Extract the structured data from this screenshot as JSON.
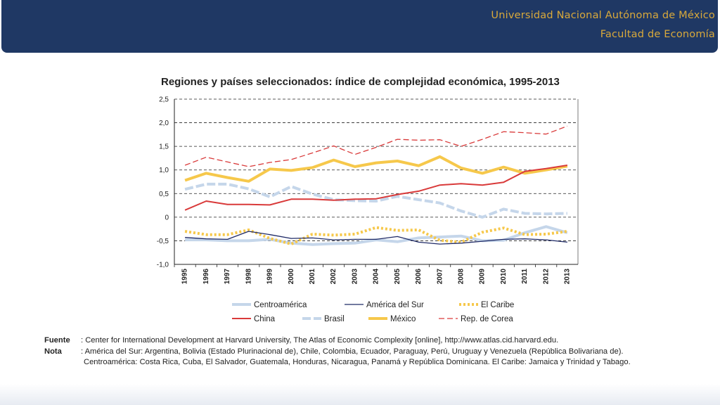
{
  "header": {
    "line1": "Universidad Nacional Autónoma de México",
    "line2": "Facultad de Economía",
    "bg_color": "#1f3864",
    "text_color": "#d9a93b"
  },
  "chart_data": {
    "type": "line",
    "title": "Regiones y países seleccionados: índice de complejidad económica, 1995-2013",
    "xlabel": "",
    "ylabel": "",
    "categories": [
      "1995",
      "1996",
      "1997",
      "1998",
      "1999",
      "2000",
      "2001",
      "2002",
      "2003",
      "2004",
      "2005",
      "2006",
      "2007",
      "2008",
      "2009",
      "2010",
      "2011",
      "2012",
      "2013"
    ],
    "ylim": [
      -1.0,
      2.5
    ],
    "yticks": [
      2.5,
      2.0,
      1.5,
      1.0,
      0.5,
      0,
      -0.5,
      -1.0
    ],
    "ytick_labels": [
      "2,5",
      "2,0",
      "1,5",
      "1,0",
      "0,5",
      "0",
      "-0,5",
      "-1,0"
    ],
    "grid": "horizontal dashed",
    "legend_position": "bottom",
    "series": [
      {
        "name": "Centroamérica",
        "color": "#c5d6ea",
        "style": "thick",
        "values": [
          -0.48,
          -0.48,
          -0.5,
          -0.5,
          -0.47,
          -0.55,
          -0.58,
          -0.56,
          -0.55,
          -0.48,
          -0.52,
          -0.44,
          -0.42,
          -0.4,
          -0.5,
          -0.49,
          -0.33,
          -0.2,
          -0.33
        ]
      },
      {
        "name": "América del Sur",
        "color": "#1f2a66",
        "style": "thin",
        "values": [
          -0.43,
          -0.46,
          -0.47,
          -0.3,
          -0.37,
          -0.45,
          -0.44,
          -0.48,
          -0.47,
          -0.47,
          -0.41,
          -0.53,
          -0.57,
          -0.55,
          -0.51,
          -0.47,
          -0.46,
          -0.48,
          -0.53
        ]
      },
      {
        "name": "El Caribe",
        "color": "#f6c84b",
        "style": "dotted",
        "values": [
          -0.3,
          -0.37,
          -0.37,
          -0.27,
          -0.45,
          -0.57,
          -0.36,
          -0.38,
          -0.36,
          -0.22,
          -0.28,
          -0.27,
          -0.49,
          -0.53,
          -0.32,
          -0.23,
          -0.37,
          -0.36,
          -0.3
        ]
      },
      {
        "name": "China",
        "color": "#d93a3a",
        "style": "solid",
        "values": [
          0.15,
          0.34,
          0.27,
          0.27,
          0.26,
          0.38,
          0.38,
          0.36,
          0.38,
          0.39,
          0.48,
          0.55,
          0.68,
          0.71,
          0.68,
          0.74,
          0.97,
          1.03,
          1.1
        ]
      },
      {
        "name": "Brasil",
        "color": "#c5d6ea",
        "style": "dashed-thick",
        "values": [
          0.59,
          0.7,
          0.7,
          0.6,
          0.43,
          0.65,
          0.49,
          0.37,
          0.35,
          0.34,
          0.44,
          0.37,
          0.3,
          0.13,
          0.0,
          0.17,
          0.08,
          0.07,
          0.08
        ]
      },
      {
        "name": "México",
        "color": "#f6c84b",
        "style": "thick",
        "values": [
          0.78,
          0.93,
          0.84,
          0.76,
          1.02,
          0.99,
          1.05,
          1.21,
          1.07,
          1.15,
          1.19,
          1.09,
          1.28,
          1.04,
          0.93,
          1.06,
          0.93,
          1.0,
          1.08
        ]
      },
      {
        "name": "Rep. de Corea",
        "color": "#d93a3a",
        "style": "dashed",
        "values": [
          1.1,
          1.27,
          1.17,
          1.07,
          1.16,
          1.22,
          1.36,
          1.51,
          1.33,
          1.48,
          1.65,
          1.63,
          1.64,
          1.5,
          1.65,
          1.81,
          1.79,
          1.76,
          1.93
        ]
      }
    ]
  },
  "notes": {
    "source_label": "Fuente",
    "source_text": ": Center for International Development at Harvard University, The Atlas of Economic Complexity [online], http://www.atlas.cid.harvard.edu.",
    "note_label": "Nota",
    "note_text1": ": América del Sur: Argentina, Bolivia (Estado Plurinacional de), Chile, Colombia, Ecuador, Paraguay, Perú, Uruguay y Venezuela (República Bolivariana de).",
    "note_text2": "Centroamérica: Costa Rica, Cuba, El Salvador, Guatemala, Honduras, Nicaragua, Panamá y República Dominicana. El Caribe: Jamaica y Trinidad y Tabago."
  }
}
